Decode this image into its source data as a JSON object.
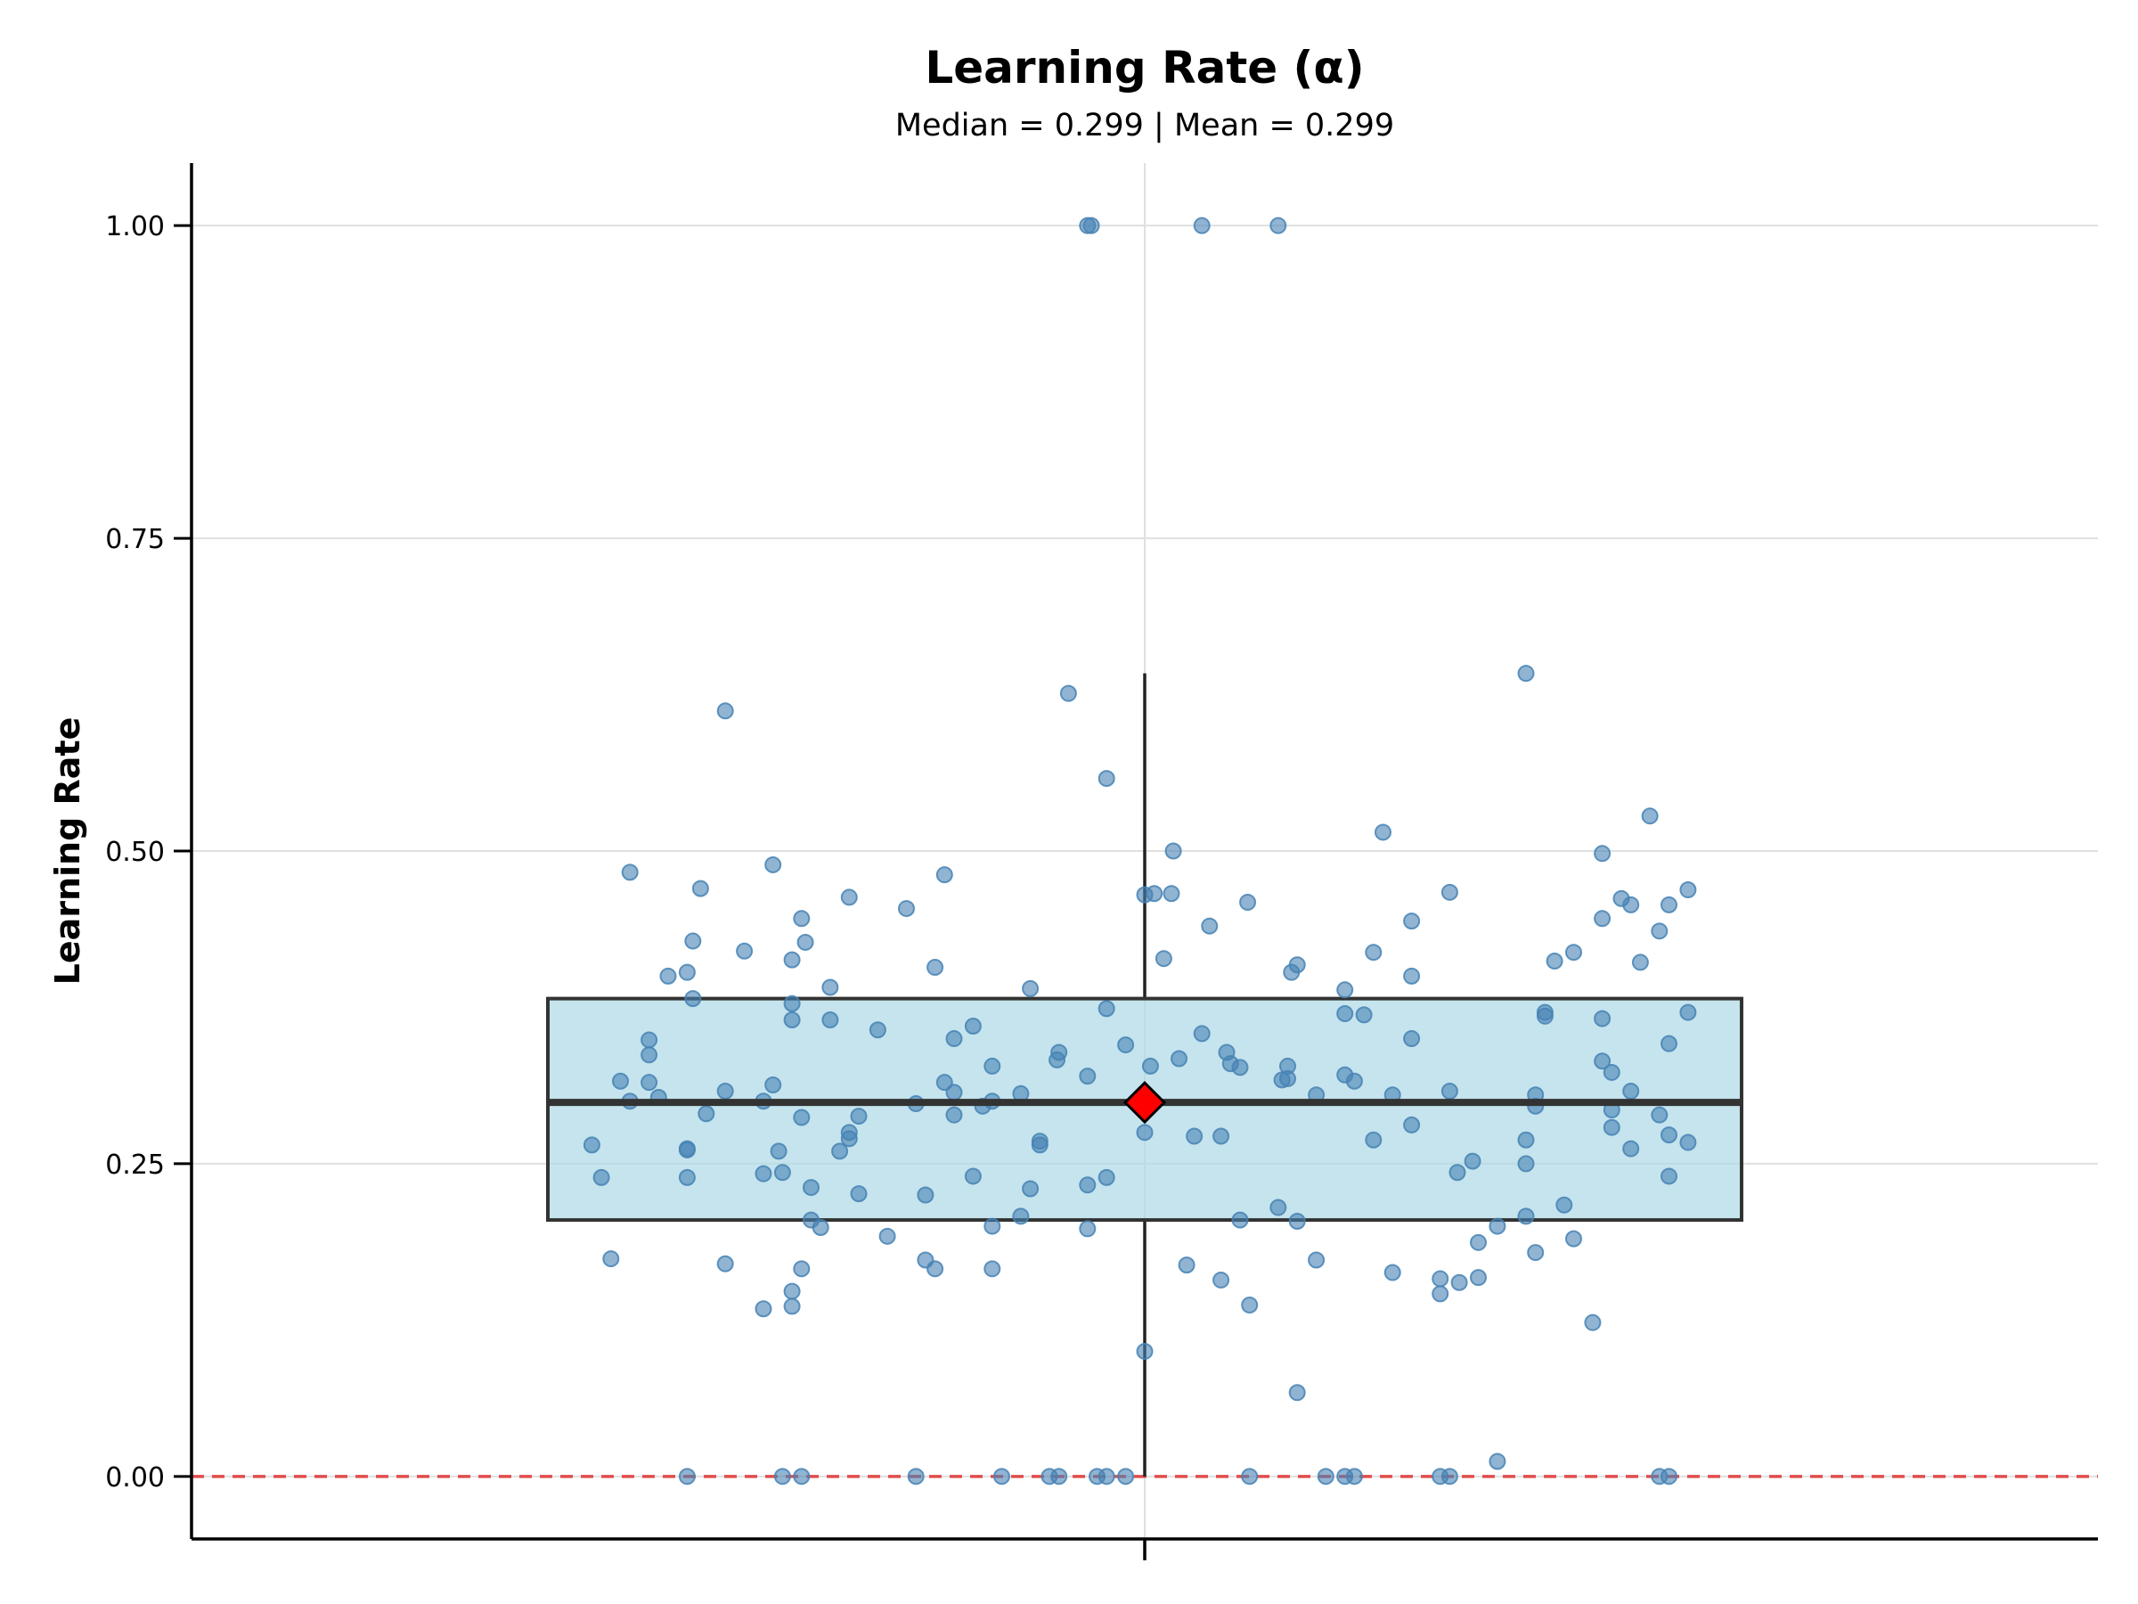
{
  "chart_data": {
    "type": "box",
    "title": "Learning Rate (α)",
    "subtitle": "Median = 0.299 | Mean = 0.299",
    "xlabel": "",
    "ylabel": "Learning Rate",
    "ylim": [
      -0.05,
      1.05
    ],
    "yticks": [
      0.0,
      0.25,
      0.5,
      0.75,
      1.0
    ],
    "ytick_labels": [
      "0.00",
      "0.25",
      "0.50",
      "0.75",
      "1.00"
    ],
    "grid": true,
    "box": {
      "q1": 0.205,
      "median": 0.299,
      "q3": 0.382,
      "whisker_low": 0.0,
      "whisker_high": 0.642,
      "mean": 0.299
    },
    "reference_line": {
      "y": 0.0,
      "style": "dashed",
      "color": "#e03c3c"
    },
    "points": [
      [
        -0.03,
        1.0
      ],
      [
        -0.028,
        1.0
      ],
      [
        0.03,
        1.0
      ],
      [
        0.07,
        1.0
      ],
      [
        -0.22,
        0.612
      ],
      [
        -0.04,
        0.626
      ],
      [
        0.2,
        0.642
      ],
      [
        -0.02,
        0.558
      ],
      [
        0.265,
        0.528
      ],
      [
        0.125,
        0.515
      ],
      [
        0.015,
        0.5
      ],
      [
        0.24,
        0.498
      ],
      [
        -0.27,
        0.483
      ],
      [
        -0.195,
        0.489
      ],
      [
        -0.105,
        0.481
      ],
      [
        -0.233,
        0.47
      ],
      [
        0.285,
        0.469
      ],
      [
        0.005,
        0.466
      ],
      [
        0.014,
        0.466
      ],
      [
        0.0,
        0.465
      ],
      [
        0.16,
        0.467
      ],
      [
        -0.155,
        0.463
      ],
      [
        0.25,
        0.462
      ],
      [
        0.255,
        0.457
      ],
      [
        0.275,
        0.457
      ],
      [
        0.054,
        0.459
      ],
      [
        -0.125,
        0.454
      ],
      [
        -0.18,
        0.446
      ],
      [
        0.24,
        0.446
      ],
      [
        0.14,
        0.444
      ],
      [
        0.034,
        0.44
      ],
      [
        0.27,
        0.436
      ],
      [
        -0.237,
        0.428
      ],
      [
        -0.178,
        0.427
      ],
      [
        -0.21,
        0.42
      ],
      [
        0.12,
        0.419
      ],
      [
        0.225,
        0.419
      ],
      [
        0.01,
        0.414
      ],
      [
        -0.185,
        0.413
      ],
      [
        0.215,
        0.412
      ],
      [
        0.26,
        0.411
      ],
      [
        0.08,
        0.409
      ],
      [
        -0.11,
        0.407
      ],
      [
        0.077,
        0.403
      ],
      [
        -0.24,
        0.403
      ],
      [
        -0.25,
        0.4
      ],
      [
        0.14,
        0.4
      ],
      [
        -0.165,
        0.391
      ],
      [
        -0.06,
        0.39
      ],
      [
        0.105,
        0.389
      ],
      [
        -0.237,
        0.382
      ],
      [
        -0.185,
        0.378
      ],
      [
        -0.02,
        0.374
      ],
      [
        0.285,
        0.371
      ],
      [
        0.21,
        0.371
      ],
      [
        0.105,
        0.37
      ],
      [
        0.115,
        0.369
      ],
      [
        0.21,
        0.368
      ],
      [
        0.24,
        0.366
      ],
      [
        -0.185,
        0.365
      ],
      [
        -0.165,
        0.365
      ],
      [
        -0.14,
        0.357
      ],
      [
        -0.09,
        0.36
      ],
      [
        0.03,
        0.354
      ],
      [
        -0.1,
        0.35
      ],
      [
        0.14,
        0.35
      ],
      [
        -0.26,
        0.349
      ],
      [
        0.275,
        0.346
      ],
      [
        -0.01,
        0.345
      ],
      [
        -0.045,
        0.339
      ],
      [
        0.043,
        0.339
      ],
      [
        -0.26,
        0.337
      ],
      [
        0.018,
        0.334
      ],
      [
        -0.046,
        0.333
      ],
      [
        0.24,
        0.332
      ],
      [
        0.045,
        0.33
      ],
      [
        0.075,
        0.328
      ],
      [
        -0.08,
        0.328
      ],
      [
        0.003,
        0.328
      ],
      [
        0.05,
        0.327
      ],
      [
        0.245,
        0.323
      ],
      [
        0.105,
        0.321
      ],
      [
        -0.03,
        0.32
      ],
      [
        0.075,
        0.318
      ],
      [
        0.072,
        0.317
      ],
      [
        0.11,
        0.316
      ],
      [
        -0.275,
        0.316
      ],
      [
        -0.26,
        0.315
      ],
      [
        -0.105,
        0.315
      ],
      [
        -0.195,
        0.313
      ],
      [
        0.16,
        0.308
      ],
      [
        0.255,
        0.308
      ],
      [
        -0.22,
        0.308
      ],
      [
        -0.1,
        0.307
      ],
      [
        -0.065,
        0.306
      ],
      [
        0.09,
        0.305
      ],
      [
        0.205,
        0.305
      ],
      [
        0.13,
        0.305
      ],
      [
        -0.255,
        0.303
      ],
      [
        -0.27,
        0.3
      ],
      [
        -0.2,
        0.3
      ],
      [
        -0.08,
        0.3
      ],
      [
        -0.12,
        0.298
      ],
      [
        -0.085,
        0.296
      ],
      [
        0.205,
        0.296
      ],
      [
        0.245,
        0.293
      ],
      [
        -0.23,
        0.29
      ],
      [
        0.27,
        0.289
      ],
      [
        -0.15,
        0.288
      ],
      [
        -0.18,
        0.287
      ],
      [
        -0.1,
        0.289
      ],
      [
        0.14,
        0.281
      ],
      [
        0.245,
        0.279
      ],
      [
        0.0,
        0.275
      ],
      [
        -0.155,
        0.275
      ],
      [
        0.275,
        0.273
      ],
      [
        0.04,
        0.272
      ],
      [
        -0.055,
        0.268
      ],
      [
        -0.155,
        0.27
      ],
      [
        0.2,
        0.269
      ],
      [
        0.12,
        0.269
      ],
      [
        0.026,
        0.272
      ],
      [
        0.285,
        0.267
      ],
      [
        -0.29,
        0.265
      ],
      [
        -0.055,
        0.265
      ],
      [
        -0.24,
        0.262
      ],
      [
        -0.16,
        0.26
      ],
      [
        -0.24,
        0.261
      ],
      [
        -0.192,
        0.26
      ],
      [
        0.255,
        0.262
      ],
      [
        0.2,
        0.25
      ],
      [
        0.172,
        0.252
      ],
      [
        0.164,
        0.243
      ],
      [
        -0.19,
        0.243
      ],
      [
        -0.2,
        0.242
      ],
      [
        -0.09,
        0.24
      ],
      [
        0.275,
        0.24
      ],
      [
        -0.02,
        0.239
      ],
      [
        -0.285,
        0.239
      ],
      [
        -0.24,
        0.239
      ],
      [
        -0.03,
        0.233
      ],
      [
        -0.06,
        0.23
      ],
      [
        -0.175,
        0.231
      ],
      [
        -0.15,
        0.226
      ],
      [
        -0.115,
        0.225
      ],
      [
        0.22,
        0.217
      ],
      [
        0.07,
        0.215
      ],
      [
        -0.065,
        0.208
      ],
      [
        0.2,
        0.208
      ],
      [
        0.05,
        0.205
      ],
      [
        -0.175,
        0.205
      ],
      [
        0.08,
        0.204
      ],
      [
        -0.17,
        0.199
      ],
      [
        -0.08,
        0.2
      ],
      [
        -0.03,
        0.198
      ],
      [
        0.185,
        0.2
      ],
      [
        -0.135,
        0.192
      ],
      [
        0.225,
        0.19
      ],
      [
        0.175,
        0.187
      ],
      [
        0.205,
        0.179
      ],
      [
        -0.28,
        0.174
      ],
      [
        0.09,
        0.173
      ],
      [
        -0.115,
        0.173
      ],
      [
        -0.22,
        0.17
      ],
      [
        0.022,
        0.169
      ],
      [
        -0.18,
        0.166
      ],
      [
        -0.11,
        0.166
      ],
      [
        -0.08,
        0.166
      ],
      [
        0.13,
        0.163
      ],
      [
        0.175,
        0.159
      ],
      [
        0.155,
        0.158
      ],
      [
        0.04,
        0.157
      ],
      [
        0.165,
        0.155
      ],
      [
        -0.185,
        0.148
      ],
      [
        0.155,
        0.146
      ],
      [
        0.055,
        0.137
      ],
      [
        -0.185,
        0.136
      ],
      [
        -0.2,
        0.134
      ],
      [
        0.235,
        0.123
      ],
      [
        0.0,
        0.1
      ],
      [
        0.08,
        0.067
      ],
      [
        0.185,
        0.012
      ],
      [
        -0.24,
        0.0
      ],
      [
        -0.19,
        0.0
      ],
      [
        -0.18,
        0.0
      ],
      [
        -0.12,
        0.0
      ],
      [
        -0.075,
        0.0
      ],
      [
        -0.05,
        0.0
      ],
      [
        -0.045,
        0.0
      ],
      [
        -0.025,
        0.0
      ],
      [
        -0.02,
        0.0
      ],
      [
        -0.01,
        0.0
      ],
      [
        0.055,
        0.0
      ],
      [
        0.095,
        0.0
      ],
      [
        0.105,
        0.0
      ],
      [
        0.11,
        0.0
      ],
      [
        0.155,
        0.0
      ],
      [
        0.16,
        0.0
      ],
      [
        0.27,
        0.0
      ],
      [
        0.275,
        0.0
      ]
    ]
  },
  "colors": {
    "box_fill": "#add8e6",
    "box_edge": "#333333",
    "point": "#4682b4",
    "mean_marker": "#ff0000",
    "grid": "#e0e0e0",
    "axis": "#000000"
  }
}
